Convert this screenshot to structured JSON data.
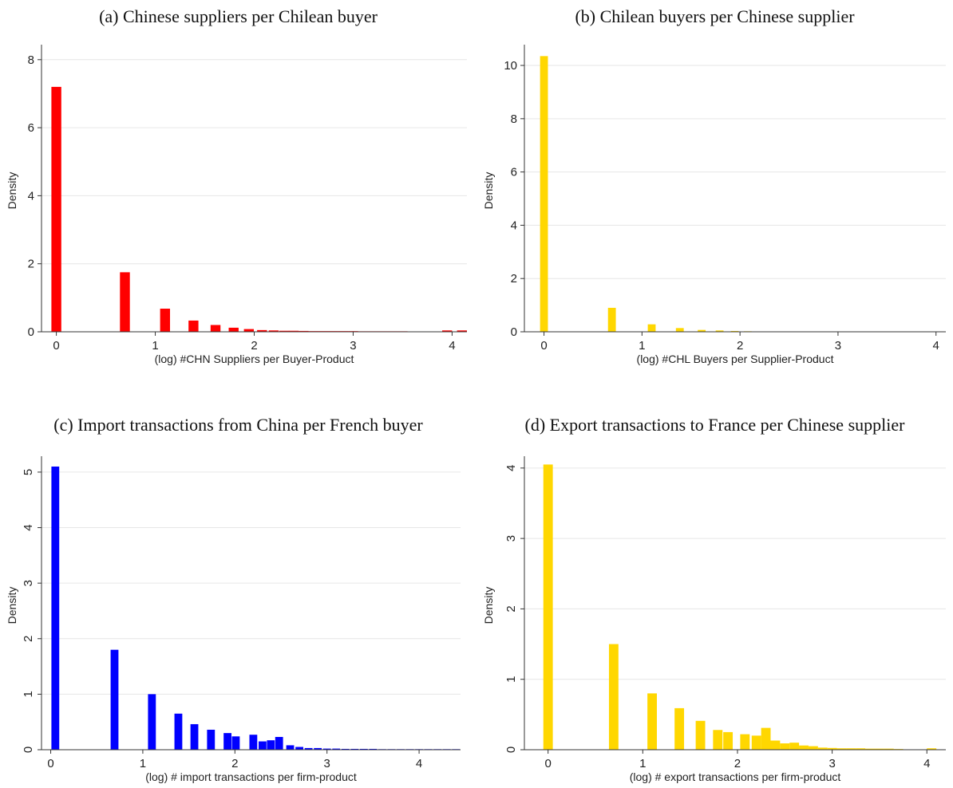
{
  "chart_data": [
    {
      "type": "bar",
      "title": "(a) Chinese suppliers per Chilean buyer",
      "xlabel": "(log) #CHN Suppliers per Buyer-Product",
      "ylabel": "Density",
      "xlim": [
        -0.15,
        4.15
      ],
      "ylim": [
        0,
        8.3
      ],
      "xticks": [
        0,
        1,
        2,
        3,
        4
      ],
      "yticks": [
        0,
        2,
        4,
        6,
        8
      ],
      "ytick_rotate": false,
      "grid": true,
      "color": "#ff0000",
      "bin_width": 0.1,
      "x": [
        0.0,
        0.693,
        1.099,
        1.386,
        1.609,
        1.792,
        1.946,
        2.079,
        2.197,
        2.303,
        2.4,
        2.5,
        2.6,
        2.7,
        2.8,
        2.9,
        3.0,
        3.1,
        3.2,
        3.3,
        3.4,
        3.5,
        3.95,
        4.1
      ],
      "values": [
        7.2,
        1.75,
        0.68,
        0.33,
        0.2,
        0.12,
        0.08,
        0.05,
        0.04,
        0.03,
        0.03,
        0.025,
        0.02,
        0.02,
        0.02,
        0.02,
        0.02,
        0.015,
        0.015,
        0.015,
        0.015,
        0.015,
        0.04,
        0.04
      ]
    },
    {
      "type": "bar",
      "title": "(b) Chilean buyers per Chinese supplier",
      "xlabel": "(log) #CHL Buyers per Supplier-Product",
      "ylabel": "Density",
      "xlim": [
        -0.2,
        4.1
      ],
      "ylim": [
        0,
        10.6
      ],
      "xticks": [
        0,
        1,
        2,
        3,
        4
      ],
      "yticks": [
        0,
        2,
        4,
        6,
        8,
        10
      ],
      "ytick_rotate": false,
      "grid": true,
      "color": "#ffd700",
      "bin_width": 0.08,
      "x": [
        0.0,
        0.693,
        1.099,
        1.386,
        1.609,
        1.792,
        1.946,
        2.079,
        2.197,
        2.3,
        2.4,
        2.5,
        2.6,
        2.7,
        2.8,
        2.9,
        3.0,
        3.1,
        3.2,
        3.3,
        3.4,
        3.5,
        3.6,
        3.7
      ],
      "values": [
        10.35,
        0.9,
        0.28,
        0.14,
        0.07,
        0.05,
        0.03,
        0.02,
        0.015,
        0.015,
        0.01,
        0.01,
        0.01,
        0.01,
        0.01,
        0.01,
        0.01,
        0.01,
        0.01,
        0.01,
        0.01,
        0.01,
        0.01,
        0.01
      ]
    },
    {
      "type": "bar",
      "title": "(c) Import transactions from China per French buyer",
      "xlabel": "(log) # import transactions per firm-product",
      "ylabel": "Density",
      "xlim": [
        -0.1,
        4.45
      ],
      "ylim": [
        0,
        5.2
      ],
      "xticks": [
        0,
        1,
        2,
        3,
        4
      ],
      "yticks": [
        0,
        1,
        2,
        3,
        4,
        5
      ],
      "ytick_rotate": true,
      "grid": true,
      "color": "#0000ff",
      "bin_width": 0.085,
      "x": [
        0.05,
        0.693,
        1.099,
        1.386,
        1.56,
        1.74,
        1.92,
        2.01,
        2.2,
        2.3,
        2.39,
        2.48,
        2.6,
        2.7,
        2.8,
        2.9,
        3.0,
        3.1,
        3.2,
        3.3,
        3.4,
        3.5,
        3.6,
        3.7,
        3.8,
        3.9,
        4.0,
        4.1,
        4.2,
        4.3,
        4.4
      ],
      "values": [
        5.1,
        1.8,
        1.0,
        0.65,
        0.46,
        0.36,
        0.3,
        0.24,
        0.27,
        0.15,
        0.17,
        0.23,
        0.08,
        0.05,
        0.03,
        0.03,
        0.02,
        0.02,
        0.015,
        0.015,
        0.015,
        0.015,
        0.01,
        0.01,
        0.01,
        0.01,
        0.01,
        0.01,
        0.01,
        0.01,
        0.01
      ]
    },
    {
      "type": "bar",
      "title": "(d) Export transactions to France per Chinese supplier",
      "xlabel": "(log) # export transactions per firm-product",
      "ylabel": "Density",
      "xlim": [
        -0.25,
        4.2
      ],
      "ylim": [
        0,
        4.1
      ],
      "xticks": [
        0,
        1,
        2,
        3,
        4
      ],
      "yticks": [
        0,
        1,
        2,
        3,
        4
      ],
      "ytick_rotate": true,
      "grid": true,
      "color": "#ffd700",
      "bin_width": 0.1,
      "x": [
        0.0,
        0.693,
        1.099,
        1.386,
        1.609,
        1.792,
        1.9,
        2.079,
        2.2,
        2.3,
        2.4,
        2.5,
        2.6,
        2.7,
        2.8,
        2.9,
        3.0,
        3.1,
        3.2,
        3.3,
        3.4,
        3.5,
        3.6,
        3.7,
        4.05
      ],
      "values": [
        4.05,
        1.5,
        0.8,
        0.59,
        0.41,
        0.28,
        0.25,
        0.22,
        0.2,
        0.31,
        0.13,
        0.09,
        0.1,
        0.06,
        0.05,
        0.03,
        0.025,
        0.02,
        0.02,
        0.02,
        0.015,
        0.015,
        0.015,
        0.01,
        0.02
      ]
    }
  ]
}
